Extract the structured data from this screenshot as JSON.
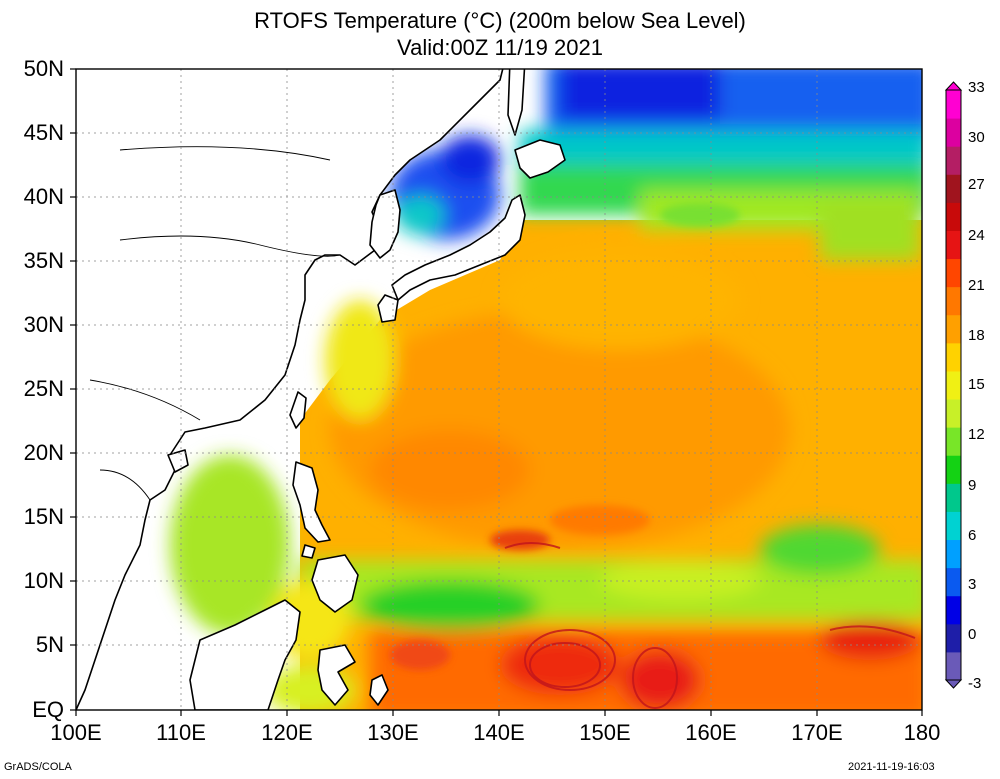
{
  "title": {
    "line1": "RTOFS Temperature (°C) (200m below Sea Level)",
    "line2": "Valid:00Z 11/19 2021"
  },
  "lat_labels": [
    "50N",
    "45N",
    "40N",
    "35N",
    "30N",
    "25N",
    "20N",
    "15N",
    "10N",
    "5N",
    "EQ"
  ],
  "lon_labels": [
    "100E",
    "110E",
    "120E",
    "130E",
    "140E",
    "150E",
    "160E",
    "170E",
    "180"
  ],
  "colorbar": {
    "ticks": [
      "33",
      "30",
      "27",
      "24",
      "21",
      "18",
      "15",
      "12",
      "9",
      "6",
      "3",
      "0",
      "-3"
    ],
    "colors": [
      "#6a5ab8",
      "#1e1ea8",
      "#0000e6",
      "#0a5af0",
      "#00a0ff",
      "#00d2d2",
      "#00c88c",
      "#14d214",
      "#78e628",
      "#c8f028",
      "#f0f014",
      "#ffd200",
      "#ffa000",
      "#ff7800",
      "#ff4600",
      "#e61414",
      "#c80a0a",
      "#a0141e",
      "#b41e64",
      "#dc00a0",
      "#ff00d2"
    ]
  },
  "footer": {
    "left": "GrADS/COLA",
    "right": "2021-11-19-16:03"
  },
  "extent": {
    "lon_min": 100,
    "lon_max": 180,
    "lat_min": 0,
    "lat_max": 50
  }
}
